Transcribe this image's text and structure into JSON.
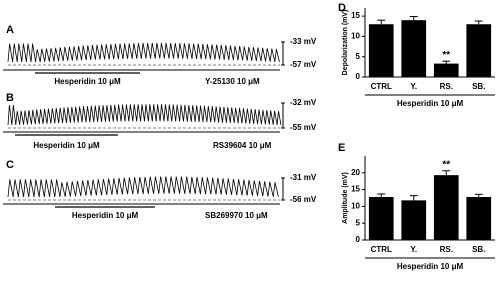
{
  "traces": [
    {
      "letter": "A",
      "top_label": "-33 mV",
      "bottom_label": "-57 mV",
      "treatment": "Hesperidin 10 μM",
      "blocker": "Y-25130 10 μM"
    },
    {
      "letter": "B",
      "top_label": "-32 mV",
      "bottom_label": "-55 mV",
      "treatment": "Hesperidin 10 μM",
      "blocker": "RS39604 10 μM"
    },
    {
      "letter": "C",
      "top_label": "-31 mV",
      "bottom_label": "-56 mV",
      "treatment": "Hesperidin 10 μM",
      "blocker": "SB269970 10 μM"
    }
  ],
  "chart_data": [
    {
      "type": "bar",
      "panel": "D",
      "ylabel": "Depolarization (mV)",
      "xlabel": "Hesperidin 10 μM",
      "categories": [
        "CTRL",
        "Y.",
        "RS.",
        "SB."
      ],
      "values": [
        13,
        14,
        3.3,
        13
      ],
      "errors": [
        1,
        0.9,
        0.6,
        0.8
      ],
      "value_annotations": [
        null,
        null,
        "**",
        null
      ],
      "color": "#000000",
      "ylim": [
        0,
        17
      ],
      "yticks": [
        0,
        5,
        10,
        15
      ]
    },
    {
      "type": "bar",
      "panel": "E",
      "ylabel": "Amplitude (mV)",
      "xlabel": "Hesperidin 10 μM",
      "categories": [
        "CTRL",
        "Y.",
        "RS.",
        "SB."
      ],
      "values": [
        12.8,
        11.8,
        19.3,
        12.8
      ],
      "errors": [
        0.9,
        1.4,
        1.3,
        0.8
      ],
      "value_annotations": [
        null,
        null,
        "**",
        null
      ],
      "color": "#000000",
      "ylim": [
        0,
        25
      ],
      "yticks": [
        0,
        5,
        10,
        15,
        20
      ]
    }
  ]
}
